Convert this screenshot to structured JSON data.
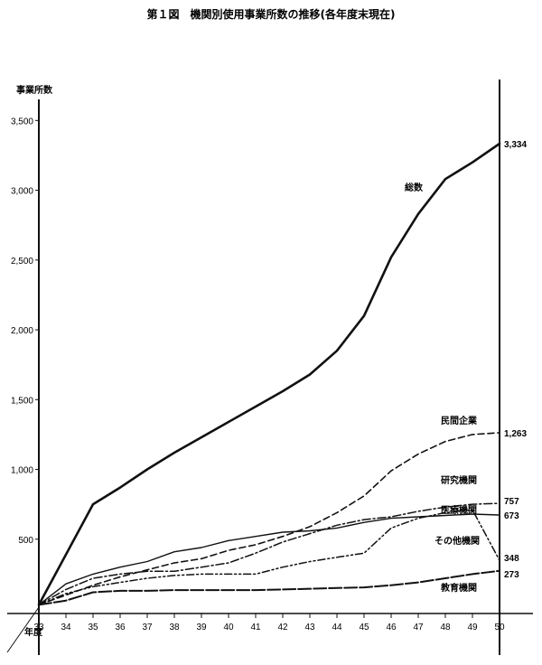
{
  "chart_data": {
    "type": "line",
    "title": "第１図　機関別使用事業所数の推移(各年度末現在)",
    "ylabel": "事業所数",
    "xlabel": "年度",
    "ylim": [
      0,
      3800
    ],
    "yticks": [
      500,
      1000,
      1500,
      2000,
      2500,
      3000,
      3500
    ],
    "ytick_labels": [
      "500",
      "1,000",
      "1,500",
      "2,000",
      "2,500",
      "3,000",
      "3,500"
    ],
    "x": [
      33,
      34,
      35,
      36,
      37,
      38,
      39,
      40,
      41,
      42,
      43,
      44,
      45,
      46,
      47,
      48,
      49,
      50
    ],
    "x_labels": [
      "33",
      "34",
      "35",
      "36",
      "37",
      "38",
      "39",
      "40",
      "41",
      "42",
      "43",
      "44",
      "45",
      "46",
      "47",
      "48",
      "49",
      "50"
    ],
    "grid": false,
    "series": [
      {
        "name": "総数",
        "end_label": "3,334",
        "style": "solid-thick",
        "values": [
          30,
          390,
          750,
          870,
          1000,
          1120,
          1230,
          1340,
          1450,
          1560,
          1680,
          1850,
          2100,
          2520,
          2830,
          3080,
          3200,
          3334
        ]
      },
      {
        "name": "民間企業",
        "end_label": "1,263",
        "style": "dashed",
        "values": [
          30,
          100,
          170,
          230,
          280,
          330,
          360,
          420,
          460,
          520,
          590,
          690,
          810,
          990,
          1110,
          1200,
          1250,
          1263
        ]
      },
      {
        "name": "研究機関",
        "end_label": "757",
        "style": "dash-dot",
        "values": [
          30,
          140,
          220,
          250,
          270,
          270,
          300,
          330,
          400,
          480,
          540,
          600,
          640,
          660,
          700,
          730,
          750,
          757
        ]
      },
      {
        "name": "医療機関",
        "end_label": "673",
        "style": "solid",
        "values": [
          30,
          180,
          250,
          300,
          340,
          410,
          440,
          490,
          520,
          550,
          560,
          580,
          620,
          650,
          660,
          670,
          680,
          673
        ]
      },
      {
        "name": "その他機関",
        "end_label": "348",
        "style": "dash-dot-dot",
        "values": [
          30,
          110,
          160,
          190,
          220,
          240,
          250,
          250,
          250,
          300,
          340,
          370,
          400,
          580,
          650,
          690,
          710,
          348
        ]
      },
      {
        "name": "教育機関",
        "end_label": "273",
        "style": "long-dash",
        "values": [
          30,
          60,
          120,
          130,
          130,
          135,
          135,
          135,
          135,
          140,
          145,
          150,
          155,
          170,
          190,
          220,
          250,
          273
        ]
      }
    ]
  }
}
